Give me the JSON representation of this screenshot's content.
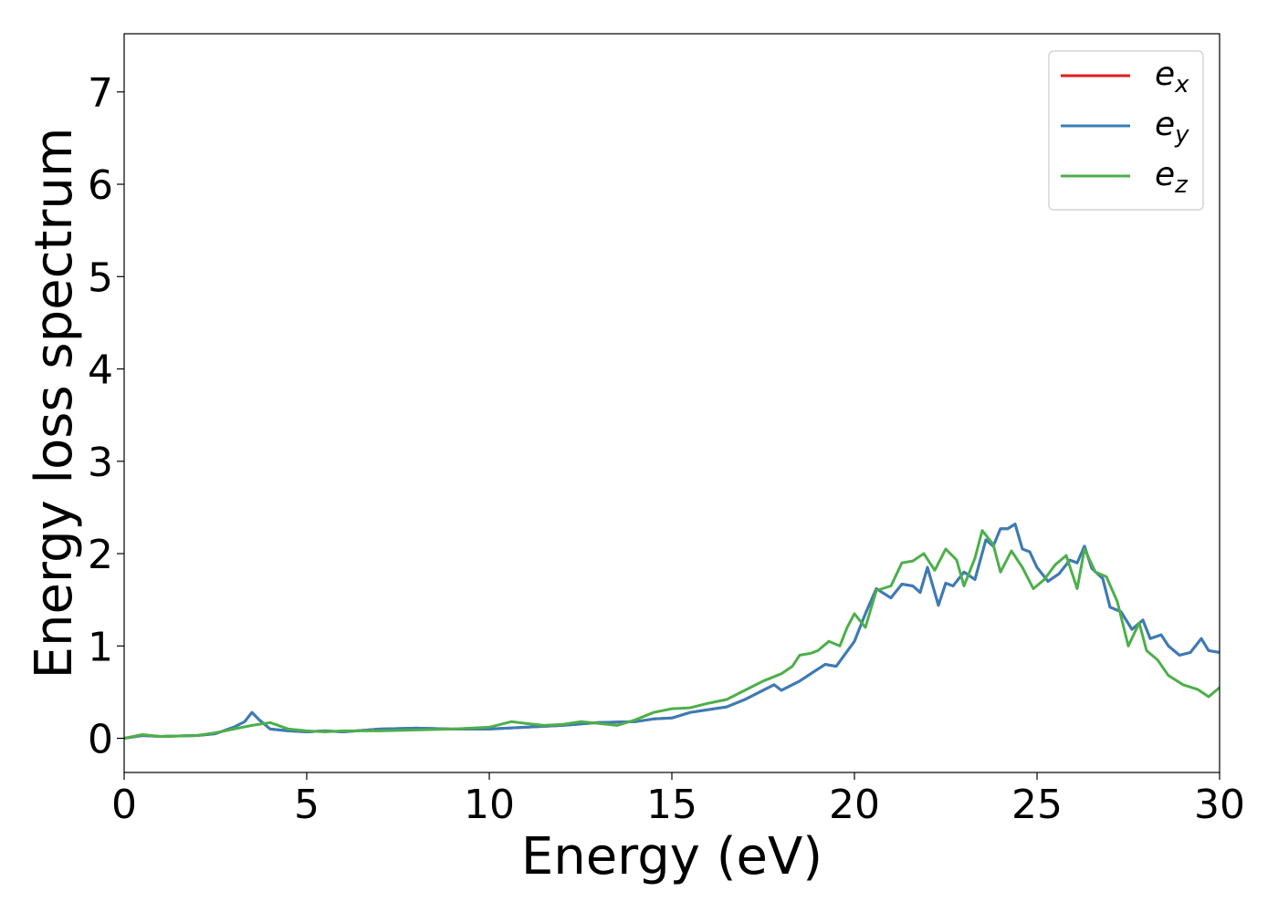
{
  "chart_data": {
    "type": "line",
    "title": "",
    "xlabel": "Energy (eV)",
    "ylabel": "Energy loss spectrum",
    "xlim": [
      0,
      30
    ],
    "ylim": [
      -0.37,
      7.63
    ],
    "xticks": [
      0,
      5,
      10,
      15,
      20,
      25,
      30
    ],
    "xtick_labels": [
      "0",
      "5",
      "10",
      "15",
      "20",
      "25",
      "30"
    ],
    "yticks": [
      0,
      1,
      2,
      3,
      4,
      5,
      6,
      7
    ],
    "ytick_labels": [
      "0",
      "1",
      "2",
      "3",
      "4",
      "5",
      "6",
      "7"
    ],
    "grid": false,
    "legend_position": "top-right",
    "series": [
      {
        "name": "e_x",
        "legend_base": "e",
        "legend_sub": "x",
        "color": "#e41a1c",
        "x": [
          0,
          0.5,
          1,
          2,
          2.5,
          3,
          3.3,
          3.5,
          3.7,
          4,
          4.5,
          5,
          5.5,
          6,
          7,
          8,
          9,
          10,
          11,
          12,
          13,
          14,
          14.5,
          15,
          15.5,
          16,
          16.5,
          17,
          17.5,
          17.8,
          18,
          18.5,
          19,
          19.2,
          19.5,
          20,
          20.3,
          20.6,
          21,
          21.3,
          21.6,
          21.8,
          22,
          22.3,
          22.5,
          22.7,
          23,
          23.3,
          23.6,
          23.8,
          24,
          24.2,
          24.4,
          24.6,
          24.8,
          25,
          25.3,
          25.6,
          25.9,
          26.1,
          26.3,
          26.5,
          26.8,
          27,
          27.3,
          27.6,
          27.9,
          28.1,
          28.4,
          28.6,
          28.9,
          29.2,
          29.5,
          29.7,
          30
        ],
        "y": [
          0,
          0.03,
          0.02,
          0.03,
          0.05,
          0.12,
          0.18,
          0.28,
          0.2,
          0.1,
          0.08,
          0.07,
          0.08,
          0.07,
          0.1,
          0.11,
          0.1,
          0.1,
          0.12,
          0.14,
          0.17,
          0.18,
          0.21,
          0.22,
          0.28,
          0.31,
          0.34,
          0.42,
          0.52,
          0.58,
          0.52,
          0.62,
          0.75,
          0.8,
          0.78,
          1.05,
          1.35,
          1.62,
          1.52,
          1.67,
          1.65,
          1.58,
          1.85,
          1.44,
          1.68,
          1.65,
          1.8,
          1.72,
          2.15,
          2.08,
          2.27,
          2.27,
          2.32,
          2.05,
          2.02,
          1.85,
          1.7,
          1.78,
          1.93,
          1.9,
          2.08,
          1.84,
          1.73,
          1.42,
          1.37,
          1.18,
          1.28,
          1.08,
          1.12,
          1,
          0.9,
          0.93,
          1.08,
          0.95,
          0.93
        ]
      },
      {
        "name": "e_y",
        "legend_base": "e",
        "legend_sub": "y",
        "color": "#377eb8",
        "x": [
          0,
          0.5,
          1,
          2,
          2.5,
          3,
          3.3,
          3.5,
          3.7,
          4,
          4.5,
          5,
          5.5,
          6,
          7,
          8,
          9,
          10,
          11,
          12,
          13,
          14,
          14.5,
          15,
          15.5,
          16,
          16.5,
          17,
          17.5,
          17.8,
          18,
          18.5,
          19,
          19.2,
          19.5,
          20,
          20.3,
          20.6,
          21,
          21.3,
          21.6,
          21.8,
          22,
          22.3,
          22.5,
          22.7,
          23,
          23.3,
          23.6,
          23.8,
          24,
          24.2,
          24.4,
          24.6,
          24.8,
          25,
          25.3,
          25.6,
          25.9,
          26.1,
          26.3,
          26.5,
          26.8,
          27,
          27.3,
          27.6,
          27.9,
          28.1,
          28.4,
          28.6,
          28.9,
          29.2,
          29.5,
          29.7,
          30
        ],
        "y": [
          0,
          0.03,
          0.02,
          0.03,
          0.05,
          0.12,
          0.18,
          0.28,
          0.2,
          0.1,
          0.08,
          0.07,
          0.08,
          0.07,
          0.1,
          0.11,
          0.1,
          0.1,
          0.12,
          0.14,
          0.17,
          0.18,
          0.21,
          0.22,
          0.28,
          0.31,
          0.34,
          0.42,
          0.52,
          0.58,
          0.52,
          0.62,
          0.75,
          0.8,
          0.78,
          1.05,
          1.35,
          1.62,
          1.52,
          1.67,
          1.65,
          1.58,
          1.85,
          1.44,
          1.68,
          1.65,
          1.8,
          1.72,
          2.15,
          2.08,
          2.27,
          2.27,
          2.32,
          2.05,
          2.02,
          1.85,
          1.7,
          1.78,
          1.93,
          1.9,
          2.08,
          1.84,
          1.73,
          1.42,
          1.37,
          1.18,
          1.28,
          1.08,
          1.12,
          1,
          0.9,
          0.93,
          1.08,
          0.95,
          0.93
        ]
      },
      {
        "name": "e_z",
        "legend_base": "e",
        "legend_sub": "z",
        "color": "#4daf4a",
        "x": [
          0,
          0.5,
          1,
          2,
          2.5,
          3,
          3.5,
          4,
          4.5,
          5,
          5.5,
          6,
          7,
          8,
          9,
          10,
          10.6,
          11,
          11.5,
          12,
          12.5,
          13,
          13.5,
          14,
          14.5,
          15,
          15.5,
          16,
          16.5,
          17,
          17.5,
          18,
          18.3,
          18.5,
          18.8,
          19,
          19.3,
          19.6,
          19.8,
          20,
          20.3,
          20.6,
          21,
          21.3,
          21.6,
          21.9,
          22.2,
          22.5,
          22.8,
          23,
          23.3,
          23.5,
          23.8,
          24,
          24.3,
          24.6,
          24.9,
          25.2,
          25.5,
          25.8,
          26.1,
          26.3,
          26.6,
          26.9,
          27.2,
          27.5,
          27.8,
          28,
          28.3,
          28.6,
          29,
          29.4,
          29.7,
          30
        ],
        "y": [
          0,
          0.04,
          0.02,
          0.03,
          0.06,
          0.1,
          0.14,
          0.17,
          0.1,
          0.08,
          0.07,
          0.08,
          0.08,
          0.09,
          0.1,
          0.12,
          0.18,
          0.16,
          0.14,
          0.15,
          0.18,
          0.16,
          0.14,
          0.2,
          0.28,
          0.32,
          0.33,
          0.38,
          0.42,
          0.52,
          0.62,
          0.7,
          0.78,
          0.9,
          0.92,
          0.95,
          1.05,
          1.0,
          1.2,
          1.35,
          1.2,
          1.6,
          1.65,
          1.9,
          1.92,
          2.0,
          1.82,
          2.05,
          1.93,
          1.65,
          1.95,
          2.25,
          2.1,
          1.8,
          2.03,
          1.85,
          1.62,
          1.72,
          1.88,
          1.98,
          1.62,
          2.05,
          1.8,
          1.75,
          1.48,
          1.0,
          1.25,
          0.95,
          0.85,
          0.68,
          0.58,
          0.53,
          0.45,
          0.55
        ]
      }
    ]
  }
}
